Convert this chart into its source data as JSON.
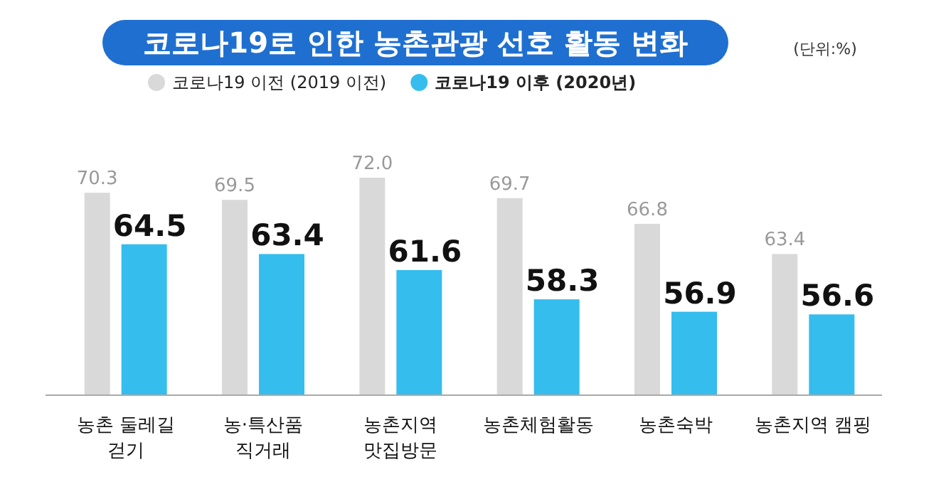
{
  "chart_data": {
    "type": "bar",
    "title": "코로나19로 인한 농촌관광 선호 활동 변화",
    "annotations": [
      "(단위:%)"
    ],
    "categories": [
      "농촌 둘레길\n걷기",
      "농·특산품\n직거래",
      "농촌지역\n맛집방문",
      "농촌체험활동",
      "농촌숙박",
      "농촌지역 캠핑"
    ],
    "series": [
      {
        "name": "코로나19 이전 (2019 이전)",
        "color": "#d9d9d9",
        "values": [
          70.3,
          69.5,
          72.0,
          69.7,
          66.8,
          63.4
        ],
        "value_labels": [
          "70.3",
          "69.5",
          "72.0",
          "69.7",
          "66.8",
          "63.4"
        ]
      },
      {
        "name": "코로나19 이후 (2020년)",
        "color": "#35bdee",
        "values": [
          64.5,
          63.4,
          61.6,
          58.3,
          56.9,
          56.6
        ],
        "value_labels": [
          "64.5",
          "63.4",
          "61.6",
          "58.3",
          "56.9",
          "56.6"
        ]
      }
    ],
    "ylim": [
      47.5,
      72.0
    ],
    "legend": "top left"
  }
}
